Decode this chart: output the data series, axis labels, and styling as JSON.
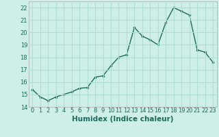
{
  "x": [
    0,
    1,
    2,
    3,
    4,
    5,
    6,
    7,
    8,
    9,
    10,
    11,
    12,
    13,
    14,
    15,
    16,
    17,
    18,
    19,
    20,
    21,
    22,
    23
  ],
  "y": [
    15.4,
    14.8,
    14.5,
    14.8,
    15.0,
    15.2,
    15.5,
    15.55,
    16.4,
    16.5,
    17.3,
    18.0,
    18.2,
    20.4,
    19.7,
    19.4,
    19.0,
    20.8,
    22.0,
    21.7,
    21.4,
    18.6,
    18.4,
    17.6
  ],
  "line_color": "#1a6b5a",
  "marker": "o",
  "marker_size": 2.0,
  "line_width": 1.0,
  "bg_color": "#ceeee8",
  "grid_color": "#b0ddd6",
  "xlabel": "Humidex (Indice chaleur)",
  "ylim": [
    14,
    22.5
  ],
  "xlim": [
    -0.5,
    23.5
  ],
  "yticks": [
    14,
    15,
    16,
    17,
    18,
    19,
    20,
    21,
    22
  ],
  "xticks": [
    0,
    1,
    2,
    3,
    4,
    5,
    6,
    7,
    8,
    9,
    10,
    11,
    12,
    13,
    14,
    15,
    16,
    17,
    18,
    19,
    20,
    21,
    22,
    23
  ],
  "tick_fontsize": 6,
  "xlabel_fontsize": 7.5,
  "tick_color": "#1a6b5a",
  "spine_color": "#aaaaaa"
}
